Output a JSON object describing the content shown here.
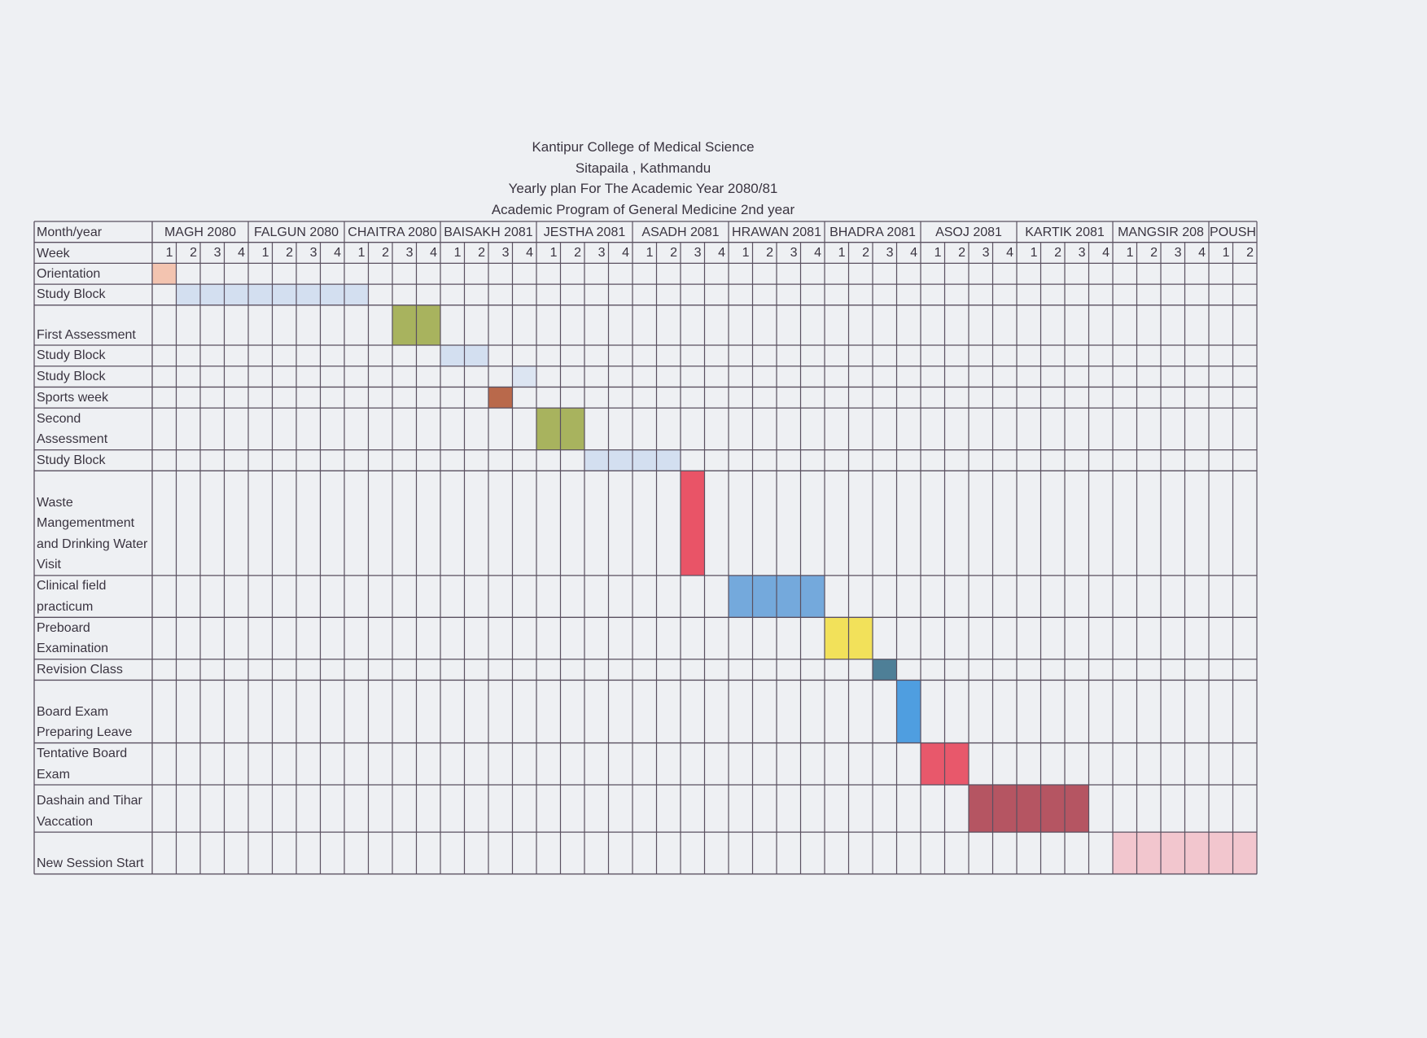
{
  "header": {
    "lines": [
      "Kantipur College of Medical Science",
      "Sitapaila , Kathmandu",
      "Yearly plan For The Academic Year 2080/81",
      "Academic Program of General Medicine 2nd year"
    ]
  },
  "table": {
    "month_label": "Month/year",
    "week_label": "Week",
    "months": [
      {
        "name": "MAGH 2080",
        "weeks": [
          1,
          2,
          3,
          4
        ]
      },
      {
        "name": "FALGUN 2080",
        "weeks": [
          1,
          2,
          3,
          4
        ]
      },
      {
        "name": "CHAITRA 2080",
        "weeks": [
          1,
          2,
          3,
          4
        ]
      },
      {
        "name": "BAISAKH 2081",
        "weeks": [
          1,
          2,
          3,
          4
        ]
      },
      {
        "name": "JESTHA 2081",
        "weeks": [
          1,
          2,
          3,
          4
        ]
      },
      {
        "name": "ASADH 2081",
        "weeks": [
          1,
          2,
          3,
          4
        ]
      },
      {
        "name": "HRAWAN 2081",
        "weeks": [
          1,
          2,
          3,
          4
        ]
      },
      {
        "name": "BHADRA 2081",
        "weeks": [
          1,
          2,
          3,
          4
        ]
      },
      {
        "name": "ASOJ 2081",
        "weeks": [
          1,
          2,
          3,
          4
        ]
      },
      {
        "name": "KARTIK 2081",
        "weeks": [
          1,
          2,
          3,
          4
        ]
      },
      {
        "name": "MANGSIR 208",
        "weeks": [
          1,
          2,
          3,
          4
        ]
      },
      {
        "name": "POUSH",
        "weeks": [
          1,
          2
        ]
      }
    ],
    "rows": [
      {
        "label": "Orientation",
        "start": 0,
        "span": 1,
        "color": "#f3c4b0"
      },
      {
        "label": "Study Block",
        "start": 1,
        "span": 8,
        "color": "#d3dff0"
      },
      {
        "label": "First Assessment",
        "start": 10,
        "span": 2,
        "color": "#a8b35e"
      },
      {
        "label": "Study Block",
        "start": 12,
        "span": 2,
        "color": "#d3dff0"
      },
      {
        "label": "Study Block",
        "start": 15,
        "span": 1,
        "color": "#dce5f2"
      },
      {
        "label": "Sports week",
        "start": 14,
        "span": 1,
        "color": "#b9694b"
      },
      {
        "label": "Second Assessment",
        "start": 16,
        "span": 2,
        "color": "#a8b35e"
      },
      {
        "label": "Study Block",
        "start": 18,
        "span": 4,
        "color": "#d3dff0"
      },
      {
        "label": "Waste Mangementment and Drinking Water Visit",
        "start": 22,
        "span": 1,
        "color": "#e95467"
      },
      {
        "label": "Clinical field practicum",
        "start": 24,
        "span": 4,
        "color": "#74a9dc"
      },
      {
        "label": "Preboard Examination",
        "start": 28,
        "span": 2,
        "color": "#f2e15a"
      },
      {
        "label": "Revision Class",
        "start": 30,
        "span": 1,
        "color": "#4e7f97"
      },
      {
        "label": "Board Exam Preparing Leave",
        "start": 31,
        "span": 1,
        "color": "#4f9ee0"
      },
      {
        "label": "Tentative Board Exam",
        "start": 32,
        "span": 2,
        "color": "#e8586b"
      },
      {
        "label": "Dashain and Tihar Vaccation",
        "start": 34,
        "span": 5,
        "color": "#b55562"
      },
      {
        "label": "New Session Start",
        "start": 40,
        "span": 6,
        "color": "#f2c6ce"
      }
    ]
  }
}
